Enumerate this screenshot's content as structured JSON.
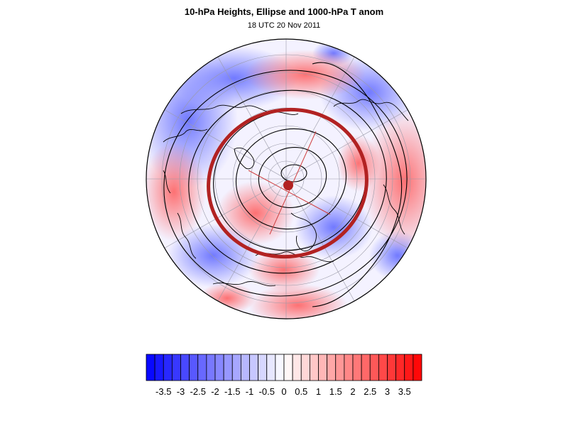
{
  "title": "10-hPa Heights, Ellipse and 1000-hPa T anom",
  "subtitle": "18 UTC 20 Nov 2011",
  "colorbar": {
    "labels": [
      "-3.5",
      "-3",
      "-2.5",
      "-2",
      "-1.5",
      "-1",
      "-0.5",
      "0",
      "0.5",
      "1",
      "1.5",
      "2",
      "2.5",
      "3",
      "3.5"
    ],
    "min": -4,
    "max": 4,
    "bins": 32,
    "neg_color": "#0000ff",
    "pos_color": "#ff0000"
  },
  "colors": {
    "ellipse": "#b22222",
    "contours": "#000000",
    "coastlines": "#000000"
  }
}
